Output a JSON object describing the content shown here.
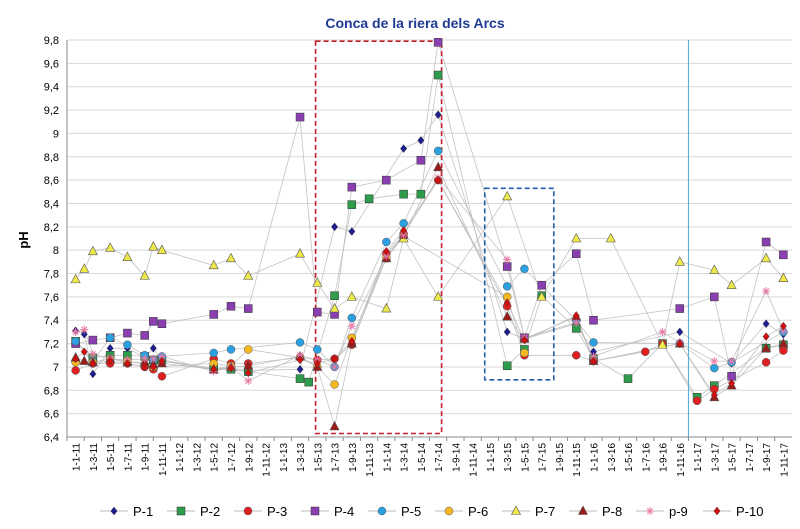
{
  "chart_data": {
    "type": "line",
    "title": "Conca de la riera dels Arcs",
    "xlabel": "",
    "ylabel": "pH",
    "ylim": [
      6.4,
      9.8
    ],
    "yticks": [
      "9,8",
      "9,6",
      "9,4",
      "9,2",
      "9",
      "8,8",
      "8,6",
      "8,4",
      "8,2",
      "8",
      "7,8",
      "7,6",
      "7,4",
      "7,2",
      "7",
      "6,8",
      "6,6",
      "6,4"
    ],
    "grid": true,
    "legend": "bottom",
    "categories": [
      "1-1-11",
      "1-3-11",
      "1-5-11",
      "1-7-11",
      "1-9-11",
      "1-11-11",
      "1-1-12",
      "1-3-12",
      "1-5-12",
      "1-7-12",
      "1-9-12",
      "1-11-12",
      "1-1-13",
      "1-3-13",
      "1-5-13",
      "1-7-13",
      "1-9-13",
      "1-11-13",
      "1-1-14",
      "1-3-14",
      "1-5-14",
      "1-7-14",
      "1-9-14",
      "1-11-14",
      "1-1-15",
      "1-3-15",
      "1-5-15",
      "1-7-15",
      "1-9-15",
      "1-11-15",
      "1-1-16",
      "1-3-16",
      "1-5-16",
      "1-7-16",
      "1-9-16",
      "1-11-16",
      "1-1-17",
      "1-3-17",
      "1-5-17",
      "1-7-17",
      "1-9-17",
      "1-11-17"
    ],
    "series": [
      {
        "name": "P-1",
        "color": "#1f1f8f",
        "marker": "diamond",
        "points": [
          [
            0,
            7.31
          ],
          [
            0.5,
            7.28
          ],
          [
            1,
            6.94
          ],
          [
            2,
            7.16
          ],
          [
            3,
            7.16
          ],
          [
            4,
            7.08
          ],
          [
            4.5,
            7.16
          ],
          [
            5,
            7.05
          ],
          [
            8,
            6.99
          ],
          [
            9,
            6.99
          ],
          [
            10,
            6.97
          ],
          [
            13,
            6.98
          ],
          [
            15,
            8.2
          ],
          [
            16,
            8.16
          ],
          [
            19,
            8.87
          ],
          [
            20,
            8.94
          ],
          [
            21,
            9.16
          ],
          [
            25,
            7.3
          ],
          [
            26,
            7.24
          ],
          [
            29,
            7.37
          ],
          [
            30,
            7.13
          ],
          [
            35,
            7.3
          ],
          [
            38,
            7.03
          ],
          [
            40,
            7.37
          ],
          [
            41,
            7.28
          ]
        ]
      },
      {
        "name": "P-2",
        "color": "#2e9c4a",
        "marker": "square",
        "points": [
          [
            0,
            7.22
          ],
          [
            1,
            7.08
          ],
          [
            2,
            7.1
          ],
          [
            3,
            7.1
          ],
          [
            4,
            7.09
          ],
          [
            4.5,
            7.06
          ],
          [
            5,
            7.06
          ],
          [
            8,
            6.98
          ],
          [
            9,
            6.98
          ],
          [
            10,
            6.96
          ],
          [
            13,
            6.9
          ],
          [
            13.5,
            6.87
          ],
          [
            15,
            7.61
          ],
          [
            16,
            8.39
          ],
          [
            17,
            8.44
          ],
          [
            19,
            8.48
          ],
          [
            20,
            8.48
          ],
          [
            21,
            9.5
          ],
          [
            25,
            7.01
          ],
          [
            26,
            7.15
          ],
          [
            27,
            7.61
          ],
          [
            29,
            7.33
          ],
          [
            30,
            7.07
          ],
          [
            32,
            6.9
          ],
          [
            34,
            7.2
          ],
          [
            36,
            6.74
          ],
          [
            37,
            6.84
          ],
          [
            40,
            7.16
          ],
          [
            41,
            7.19
          ]
        ]
      },
      {
        "name": "P-3",
        "color": "#e02020",
        "marker": "circle",
        "points": [
          [
            0,
            6.97
          ],
          [
            1,
            7.03
          ],
          [
            2,
            7.03
          ],
          [
            3,
            7.03
          ],
          [
            4,
            7.0
          ],
          [
            4.5,
            6.98
          ],
          [
            5,
            6.92
          ],
          [
            8,
            7.07
          ],
          [
            9,
            7.03
          ],
          [
            10,
            7.03
          ],
          [
            13,
            7.08
          ],
          [
            14,
            7.06
          ],
          [
            15,
            7.07
          ],
          [
            16,
            7.19
          ],
          [
            18,
            7.97
          ],
          [
            19,
            8.14
          ],
          [
            21,
            8.6
          ],
          [
            25,
            7.52
          ],
          [
            26,
            7.1
          ],
          [
            29,
            7.1
          ],
          [
            30,
            7.05
          ],
          [
            33,
            7.13
          ],
          [
            34,
            7.2
          ],
          [
            36,
            6.71
          ],
          [
            37,
            6.81
          ],
          [
            40,
            7.04
          ],
          [
            41,
            7.14
          ]
        ]
      },
      {
        "name": "P-4",
        "color": "#8a3fb0",
        "marker": "square",
        "points": [
          [
            0,
            7.2
          ],
          [
            1,
            7.23
          ],
          [
            2,
            7.25
          ],
          [
            3,
            7.29
          ],
          [
            4,
            7.27
          ],
          [
            4.5,
            7.39
          ],
          [
            5,
            7.37
          ],
          [
            8,
            7.45
          ],
          [
            9,
            7.52
          ],
          [
            10,
            7.5
          ],
          [
            13,
            9.14
          ],
          [
            14,
            7.47
          ],
          [
            15,
            7.45
          ],
          [
            16,
            8.54
          ],
          [
            18,
            8.6
          ],
          [
            20,
            8.77
          ],
          [
            21,
            9.78
          ],
          [
            25,
            7.86
          ],
          [
            26,
            7.25
          ],
          [
            27,
            7.7
          ],
          [
            29,
            7.97
          ],
          [
            30,
            7.4
          ],
          [
            35,
            7.5
          ],
          [
            37,
            7.6
          ],
          [
            38,
            6.92
          ],
          [
            40,
            8.07
          ],
          [
            41,
            7.96
          ]
        ]
      },
      {
        "name": "P-5",
        "color": "#2aa0e0",
        "marker": "circle",
        "points": [
          [
            0,
            7.22
          ],
          [
            1,
            7.05
          ],
          [
            2,
            7.25
          ],
          [
            3,
            7.19
          ],
          [
            4,
            7.1
          ],
          [
            4.5,
            7.06
          ],
          [
            5,
            7.09
          ],
          [
            8,
            7.12
          ],
          [
            9,
            7.15
          ],
          [
            13,
            7.21
          ],
          [
            14,
            7.15
          ],
          [
            15,
            7.0
          ],
          [
            16,
            7.42
          ],
          [
            18,
            8.07
          ],
          [
            19,
            8.23
          ],
          [
            21,
            8.85
          ],
          [
            25,
            7.69
          ],
          [
            26,
            7.84
          ],
          [
            29,
            7.4
          ],
          [
            30,
            7.21
          ],
          [
            35,
            7.2
          ],
          [
            37,
            6.99
          ],
          [
            38,
            7.04
          ],
          [
            41,
            7.3
          ]
        ]
      },
      {
        "name": "P-6",
        "color": "#f5b820",
        "marker": "circle",
        "points": [
          [
            0,
            7.04
          ],
          [
            1,
            7.04
          ],
          [
            2,
            7.07
          ],
          [
            3,
            7.05
          ],
          [
            4,
            7.02
          ],
          [
            4.5,
            7.0
          ],
          [
            8,
            7.03
          ],
          [
            9,
            7.01
          ],
          [
            10,
            7.15
          ],
          [
            13,
            7.08
          ],
          [
            14,
            7.0
          ],
          [
            15,
            6.85
          ],
          [
            16,
            7.25
          ],
          [
            18,
            7.93
          ],
          [
            19,
            8.12
          ],
          [
            25,
            7.6
          ],
          [
            26,
            7.12
          ]
        ]
      },
      {
        "name": "P-7",
        "color": "#efe84a",
        "marker": "triangle",
        "points": [
          [
            0,
            7.75
          ],
          [
            0.5,
            7.84
          ],
          [
            1,
            7.99
          ],
          [
            2,
            8.02
          ],
          [
            3,
            7.94
          ],
          [
            4,
            7.78
          ],
          [
            4.5,
            8.03
          ],
          [
            5,
            8.0
          ],
          [
            8,
            7.87
          ],
          [
            9,
            7.93
          ],
          [
            10,
            7.78
          ],
          [
            13,
            7.97
          ],
          [
            14,
            7.72
          ],
          [
            15,
            7.5
          ],
          [
            16,
            7.6
          ],
          [
            18,
            7.5
          ],
          [
            19,
            8.1
          ],
          [
            21,
            7.6
          ],
          [
            25,
            8.46
          ],
          [
            27,
            7.6
          ],
          [
            29,
            8.1
          ],
          [
            31,
            8.1
          ],
          [
            34,
            7.19
          ],
          [
            35,
            7.9
          ],
          [
            37,
            7.83
          ],
          [
            38,
            7.7
          ],
          [
            40,
            7.93
          ],
          [
            41,
            7.76
          ]
        ]
      },
      {
        "name": "P-8",
        "color": "#9b1b1b",
        "marker": "triangle",
        "points": [
          [
            0,
            7.08
          ],
          [
            0.5,
            7.05
          ],
          [
            1,
            7.04
          ],
          [
            2,
            7.07
          ],
          [
            3,
            7.04
          ],
          [
            4,
            7.04
          ],
          [
            4.5,
            7.02
          ],
          [
            5,
            7.03
          ],
          [
            8,
            6.98
          ],
          [
            9,
            7.0
          ],
          [
            10,
            7.01
          ],
          [
            13,
            7.09
          ],
          [
            14,
            7.0
          ],
          [
            15,
            6.49
          ],
          [
            16,
            7.2
          ],
          [
            18,
            7.93
          ],
          [
            19,
            8.13
          ],
          [
            21,
            8.71
          ],
          [
            25,
            7.43
          ],
          [
            26,
            7.24
          ],
          [
            29,
            7.43
          ],
          [
            30,
            7.05
          ],
          [
            35,
            7.2
          ],
          [
            37,
            6.74
          ],
          [
            38,
            6.84
          ],
          [
            40,
            7.16
          ],
          [
            41,
            7.2
          ]
        ]
      },
      {
        "name": "p-9",
        "color": "#e87aa6",
        "marker": "star",
        "points": [
          [
            0,
            7.3
          ],
          [
            0.5,
            7.32
          ],
          [
            1,
            7.11
          ],
          [
            2,
            7.07
          ],
          [
            3,
            7.06
          ],
          [
            4,
            7.07
          ],
          [
            4.5,
            7.07
          ],
          [
            5,
            7.09
          ],
          [
            8,
            6.96
          ],
          [
            9,
            7.0
          ],
          [
            10,
            6.88
          ],
          [
            13,
            7.1
          ],
          [
            14,
            7.06
          ],
          [
            15,
            7.0
          ],
          [
            16,
            7.35
          ],
          [
            18,
            7.95
          ],
          [
            19,
            8.13
          ],
          [
            21,
            8.62
          ],
          [
            25,
            7.92
          ],
          [
            26,
            7.25
          ],
          [
            29,
            7.38
          ],
          [
            30,
            7.09
          ],
          [
            34,
            7.3
          ],
          [
            35,
            7.21
          ],
          [
            37,
            7.05
          ],
          [
            38,
            7.05
          ],
          [
            40,
            7.65
          ],
          [
            41,
            7.31
          ]
        ]
      },
      {
        "name": "P-10",
        "color": "#d01010",
        "marker": "diamond",
        "points": [
          [
            0,
            7.07
          ],
          [
            0.5,
            7.13
          ],
          [
            1,
            7.03
          ],
          [
            2,
            7.05
          ],
          [
            3,
            7.03
          ],
          [
            4,
            7.0
          ],
          [
            4.5,
            7.0
          ],
          [
            5,
            7.05
          ],
          [
            8,
            6.98
          ],
          [
            9,
            6.99
          ],
          [
            10,
            6.95
          ],
          [
            13,
            7.06
          ],
          [
            14,
            7.03
          ],
          [
            15,
            7.07
          ],
          [
            16,
            7.22
          ],
          [
            18,
            7.99
          ],
          [
            19,
            8.17
          ],
          [
            21,
            8.6
          ],
          [
            25,
            7.55
          ],
          [
            26,
            7.23
          ],
          [
            29,
            7.44
          ],
          [
            30,
            7.05
          ],
          [
            35,
            7.2
          ],
          [
            37,
            6.76
          ],
          [
            38,
            6.86
          ],
          [
            40,
            7.26
          ],
          [
            41,
            7.35
          ]
        ]
      }
    ],
    "annotations": [
      {
        "type": "box",
        "style": "dashed",
        "color": "#c0202a",
        "x_range": [
          14.4,
          21.7
        ],
        "y_range": [
          6.43,
          9.79
        ]
      },
      {
        "type": "box",
        "style": "dashed",
        "color": "#1f5fa8",
        "x_range": [
          24.2,
          28.2
        ],
        "y_range": [
          6.89,
          8.53
        ]
      },
      {
        "type": "vline",
        "color": "#4aa8e0",
        "x": 36
      }
    ]
  }
}
